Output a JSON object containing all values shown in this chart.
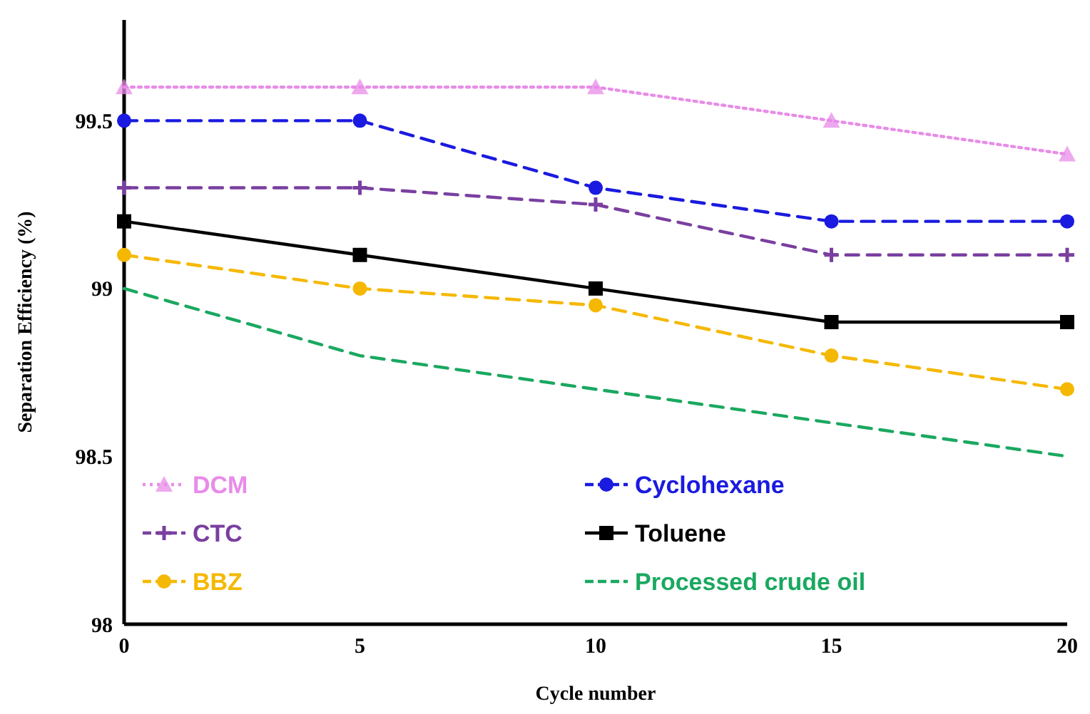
{
  "chart_data": {
    "type": "line",
    "xlabel": "Cycle number",
    "ylabel": "Separation Efficiency (%)",
    "x": [
      0,
      5,
      10,
      15,
      20
    ],
    "xlim": [
      0,
      20
    ],
    "xticks": [
      0,
      5,
      10,
      15,
      20
    ],
    "ylim": [
      98,
      99.8
    ],
    "yticks": [
      98,
      98.5,
      99,
      99.5
    ],
    "grid": false,
    "legend": "bottom",
    "series": [
      {
        "name": "DCM",
        "color": "#e88ce8",
        "values": [
          99.6,
          99.6,
          99.6,
          99.5,
          99.4
        ],
        "marker": "triangle",
        "line_style": "dotted"
      },
      {
        "name": "Cyclohexane",
        "color": "#1a1ae0",
        "values": [
          99.5,
          99.5,
          99.3,
          99.2,
          99.2
        ],
        "marker": "circle",
        "line_style": "dashed"
      },
      {
        "name": "CTC",
        "color": "#7a3fa0",
        "values": [
          99.3,
          99.3,
          99.25,
          99.1,
          99.1
        ],
        "marker": "cross",
        "line_style": "dashed"
      },
      {
        "name": "Toluene",
        "color": "#000000",
        "values": [
          99.2,
          99.1,
          99.0,
          98.9,
          98.9
        ],
        "marker": "square",
        "line_style": "solid"
      },
      {
        "name": "BBZ",
        "color": "#f5b800",
        "values": [
          99.1,
          99.0,
          98.95,
          98.8,
          98.7
        ],
        "marker": "circle",
        "line_style": "dashed"
      },
      {
        "name": "Processed crude oil",
        "color": "#1aa860",
        "values": [
          99.0,
          98.8,
          98.7,
          98.6,
          98.5
        ],
        "marker": "none",
        "line_style": "dashed"
      }
    ]
  }
}
